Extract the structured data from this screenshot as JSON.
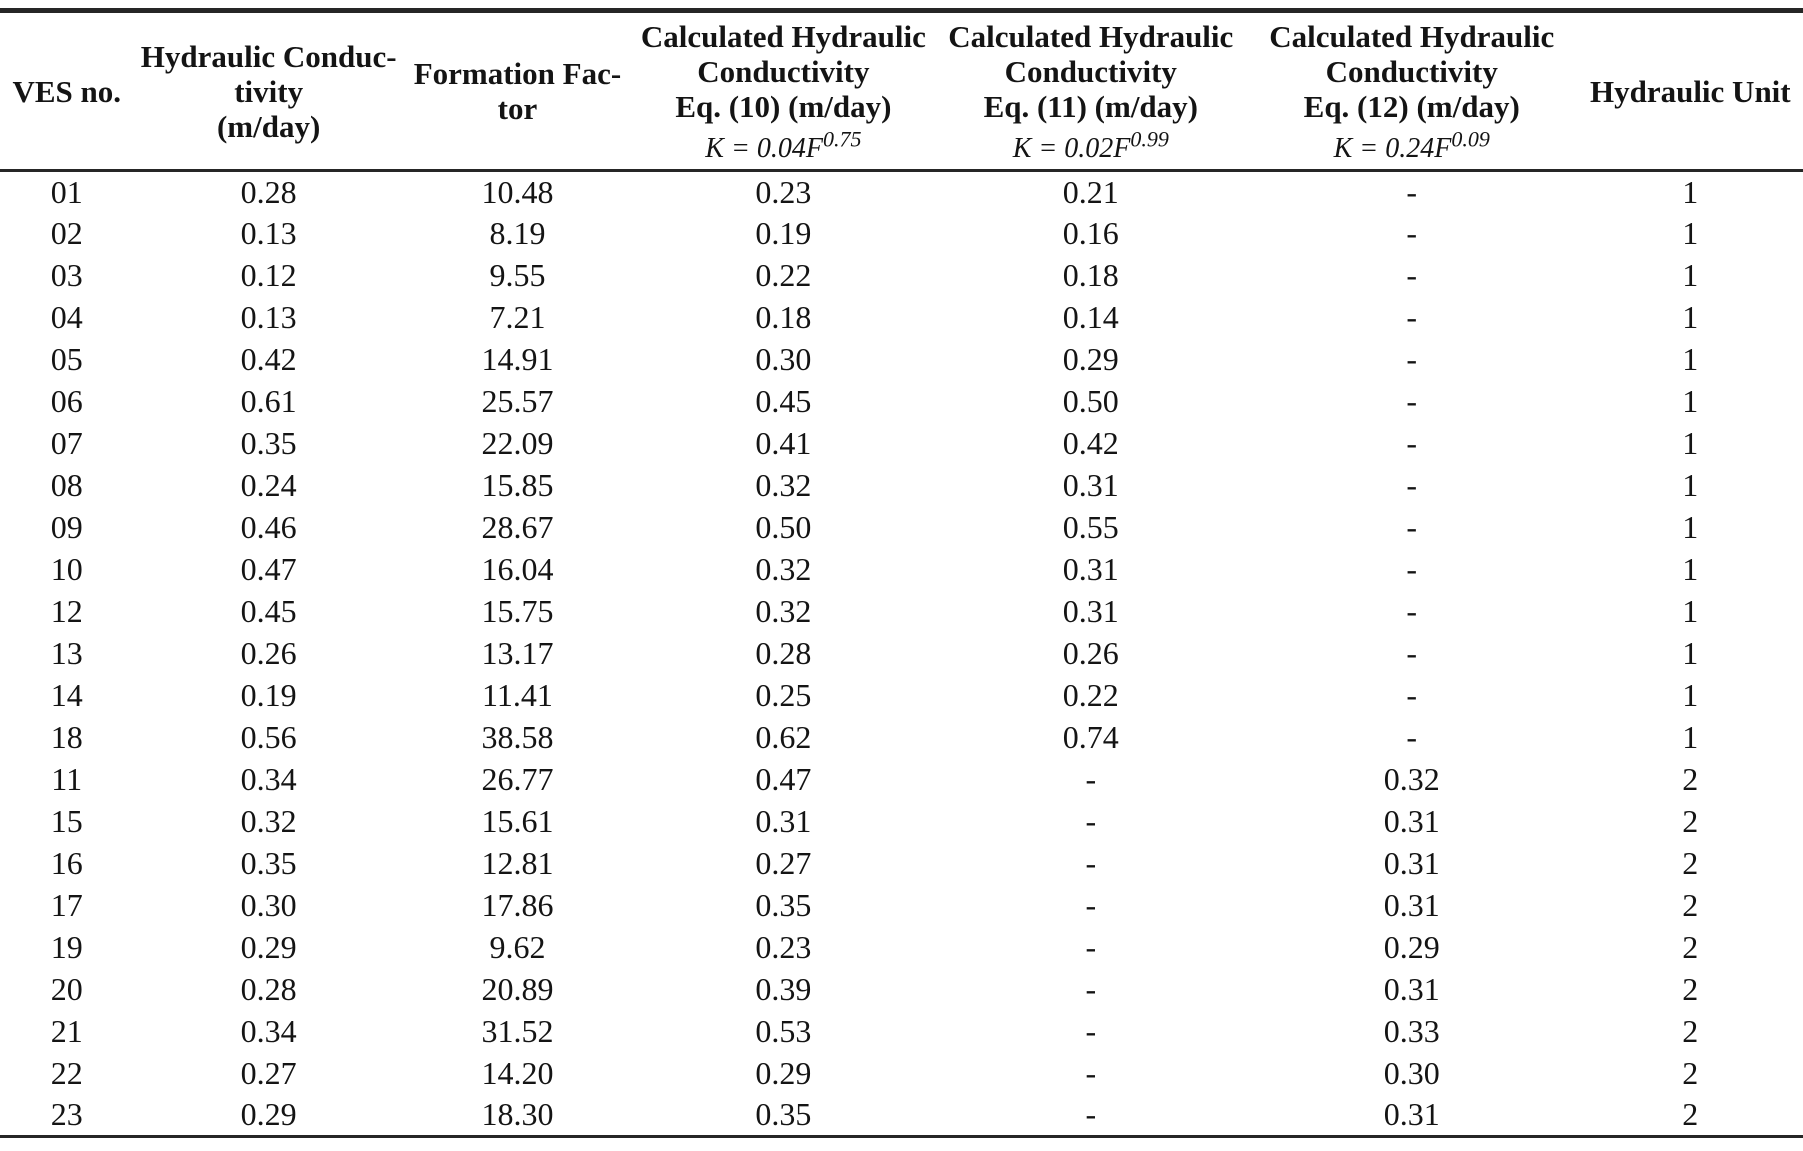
{
  "table": {
    "headers": [
      {
        "lines": [
          "VES no."
        ]
      },
      {
        "lines": [
          "Hydraulic Conduc-",
          "tivity",
          "(m/day)"
        ]
      },
      {
        "lines": [
          "Formation Fac-",
          "tor"
        ]
      },
      {
        "lines": [
          "Calculated Hydraulic",
          "Conductivity",
          "Eq. (10) (m/day)"
        ],
        "formula": {
          "base": "K = 0.04F",
          "exponent": "0.75"
        }
      },
      {
        "lines": [
          "Calculated Hydraulic",
          "Conductivity",
          "Eq. (11) (m/day)"
        ],
        "formula": {
          "base": "K = 0.02F",
          "exponent": "0.99"
        }
      },
      {
        "lines": [
          "Calculated Hydraulic",
          "Conductivity",
          "Eq. (12) (m/day)"
        ],
        "formula": {
          "base": "K = 0.24F",
          "exponent": "0.09"
        }
      },
      {
        "lines": [
          "Hydraulic Unit"
        ]
      }
    ],
    "rows": [
      [
        "01",
        "0.28",
        "10.48",
        "0.23",
        "0.21",
        "-",
        "1"
      ],
      [
        "02",
        "0.13",
        "8.19",
        "0.19",
        "0.16",
        "-",
        "1"
      ],
      [
        "03",
        "0.12",
        "9.55",
        "0.22",
        "0.18",
        "-",
        "1"
      ],
      [
        "04",
        "0.13",
        "7.21",
        "0.18",
        "0.14",
        "-",
        "1"
      ],
      [
        "05",
        "0.42",
        "14.91",
        "0.30",
        "0.29",
        "-",
        "1"
      ],
      [
        "06",
        "0.61",
        "25.57",
        "0.45",
        "0.50",
        "-",
        "1"
      ],
      [
        "07",
        "0.35",
        "22.09",
        "0.41",
        "0.42",
        "-",
        "1"
      ],
      [
        "08",
        "0.24",
        "15.85",
        "0.32",
        "0.31",
        "-",
        "1"
      ],
      [
        "09",
        "0.46",
        "28.67",
        "0.50",
        "0.55",
        "-",
        "1"
      ],
      [
        "10",
        "0.47",
        "16.04",
        "0.32",
        "0.31",
        "-",
        "1"
      ],
      [
        "12",
        "0.45",
        "15.75",
        "0.32",
        "0.31",
        "-",
        "1"
      ],
      [
        "13",
        "0.26",
        "13.17",
        "0.28",
        "0.26",
        "-",
        "1"
      ],
      [
        "14",
        "0.19",
        "11.41",
        "0.25",
        "0.22",
        "-",
        "1"
      ],
      [
        "18",
        "0.56",
        "38.58",
        "0.62",
        "0.74",
        "-",
        "1"
      ],
      [
        "11",
        "0.34",
        "26.77",
        "0.47",
        "-",
        "0.32",
        "2"
      ],
      [
        "15",
        "0.32",
        "15.61",
        "0.31",
        "-",
        "0.31",
        "2"
      ],
      [
        "16",
        "0.35",
        "12.81",
        "0.27",
        "-",
        "0.31",
        "2"
      ],
      [
        "17",
        "0.30",
        "17.86",
        "0.35",
        "-",
        "0.31",
        "2"
      ],
      [
        "19",
        "0.29",
        "9.62",
        "0.23",
        "-",
        "0.29",
        "2"
      ],
      [
        "20",
        "0.28",
        "20.89",
        "0.39",
        "-",
        "0.31",
        "2"
      ],
      [
        "21",
        "0.34",
        "31.52",
        "0.53",
        "-",
        "0.33",
        "2"
      ],
      [
        "22",
        "0.27",
        "14.20",
        "0.29",
        "-",
        "0.30",
        "2"
      ],
      [
        "23",
        "0.29",
        "18.30",
        "0.35",
        "-",
        "0.31",
        "2"
      ]
    ]
  }
}
